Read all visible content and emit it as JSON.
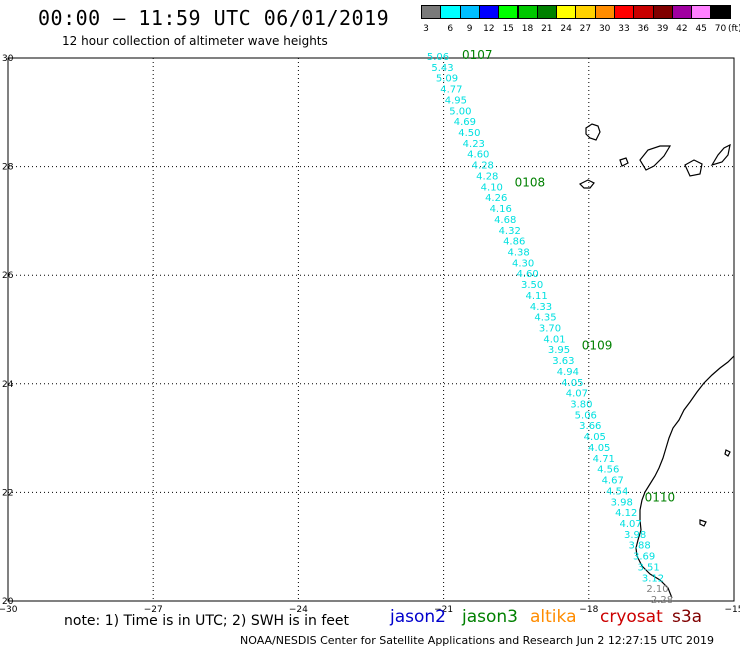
{
  "header": {
    "title": "00:00 – 11:59 UTC 06/01/2019",
    "subtitle": "12 hour collection of altimeter wave heights"
  },
  "legend": {
    "unit": "(ft)",
    "swatches": [
      {
        "color": "#7a7a7a",
        "label": "3"
      },
      {
        "color": "#00ffff",
        "label": "6"
      },
      {
        "color": "#00bfff",
        "label": "9"
      },
      {
        "color": "#0000ff",
        "label": "12"
      },
      {
        "color": "#00ff00",
        "label": "15"
      },
      {
        "color": "#00c800",
        "label": "18"
      },
      {
        "color": "#008000",
        "label": "21"
      },
      {
        "color": "#ffff00",
        "label": "24"
      },
      {
        "color": "#ffd200",
        "label": "27"
      },
      {
        "color": "#ff8c00",
        "label": "30"
      },
      {
        "color": "#ff0000",
        "label": "33"
      },
      {
        "color": "#c80000",
        "label": "36"
      },
      {
        "color": "#800000",
        "label": "39"
      },
      {
        "color": "#a000a0",
        "label": "42"
      },
      {
        "color": "#ff80ff",
        "label": "45"
      },
      {
        "color": "#000000",
        "label": "70"
      }
    ]
  },
  "map": {
    "lon_ticks": [
      "−30",
      "−27",
      "−24",
      "−21",
      "−18",
      "−15"
    ],
    "lat_ticks": [
      "20",
      "22",
      "24",
      "26",
      "28",
      "30"
    ],
    "track_color": "#00e0e0",
    "track_color_low": "#808080",
    "time_color": "#008000",
    "wave_heights": [
      "5.06",
      "5.43",
      "5.09",
      "4.77",
      "4.95",
      "5.00",
      "4.69",
      "4.50",
      "4.23",
      "4.60",
      "4.28",
      "4.28",
      "4.10",
      "4.26",
      "4.16",
      "4.68",
      "4.32",
      "4.86",
      "4.38",
      "4.30",
      "4.60",
      "3.50",
      "4.11",
      "4.33",
      "4.35",
      "3.70",
      "4.01",
      "3.95",
      "3.63",
      "4.94",
      "4.05",
      "4.07",
      "3.80",
      "5.06",
      "3.66",
      "4.05",
      "4.05",
      "4.71",
      "4.56",
      "4.67",
      "4.54",
      "3.98",
      "4.12",
      "4.07",
      "3.98",
      "3.88",
      "3.69",
      "3.51",
      "3.12",
      "2.10",
      "2.28"
    ],
    "time_labels": [
      "0107",
      "0108",
      "0109",
      "0110"
    ]
  },
  "footer": {
    "note": "note: 1) Time is in UTC; 2) SWH is in feet",
    "satellites": [
      {
        "name": "jason2",
        "color": "#0000cc"
      },
      {
        "name": "jason3",
        "color": "#008000"
      },
      {
        "name": "altika",
        "color": "#ff8c00"
      },
      {
        "name": "cryosat",
        "color": "#cc0000"
      },
      {
        "name": "s3a",
        "color": "#800000"
      }
    ],
    "credit": "NOAA/NESDIS Center for Satellite Applications and Research    Jun  2 12:27:15 UTC 2019"
  }
}
